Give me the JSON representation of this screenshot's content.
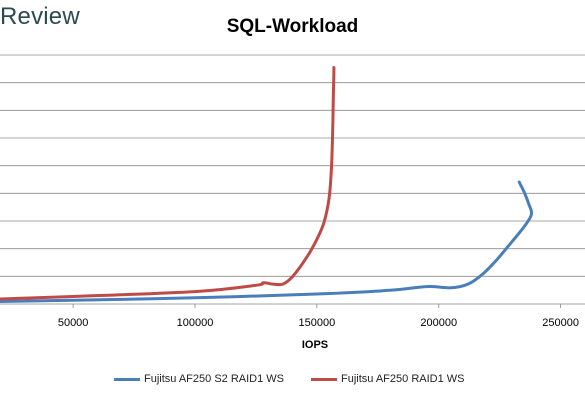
{
  "brand": "Review",
  "chart_data": {
    "type": "line",
    "title": "SQL-Workload",
    "xlabel": "IOPS",
    "ylabel": "",
    "xlim": [
      20000,
      260000
    ],
    "x_ticks": [
      50000,
      100000,
      150000,
      200000,
      250000
    ],
    "x_tick_labels": [
      "50000",
      "100000",
      "150000",
      "200000",
      "250000"
    ],
    "y_gridlines": 9,
    "grid": true,
    "legend_position": "bottom",
    "series": [
      {
        "name": "Fujitsu AF250 S2 RAID1 WS",
        "color": "#4a7ebb",
        "points": [
          [
            20000,
            0.2
          ],
          [
            50000,
            0.3
          ],
          [
            100000,
            0.5
          ],
          [
            150000,
            0.8
          ],
          [
            180000,
            1.1
          ],
          [
            195000,
            1.4
          ],
          [
            205000,
            1.3
          ],
          [
            212000,
            1.6
          ],
          [
            218000,
            2.4
          ],
          [
            224000,
            3.6
          ],
          [
            230000,
            5.0
          ],
          [
            235000,
            6.2
          ],
          [
            238000,
            7.2
          ],
          [
            237000,
            8.0
          ],
          [
            235000,
            9.0
          ],
          [
            233000,
            9.8
          ]
        ]
      },
      {
        "name": "Fujitsu AF250 RAID1 WS",
        "color": "#be4b48",
        "points": [
          [
            20000,
            0.4
          ],
          [
            50000,
            0.6
          ],
          [
            100000,
            1.0
          ],
          [
            125000,
            1.5
          ],
          [
            128000,
            1.7
          ],
          [
            132000,
            1.6
          ],
          [
            136000,
            1.6
          ],
          [
            140000,
            2.2
          ],
          [
            146000,
            3.8
          ],
          [
            150000,
            5.2
          ],
          [
            153000,
            6.6
          ],
          [
            155000,
            8.5
          ],
          [
            156000,
            11.0
          ],
          [
            156500,
            14.0
          ],
          [
            156800,
            17.0
          ],
          [
            157000,
            19.0
          ]
        ]
      }
    ]
  }
}
